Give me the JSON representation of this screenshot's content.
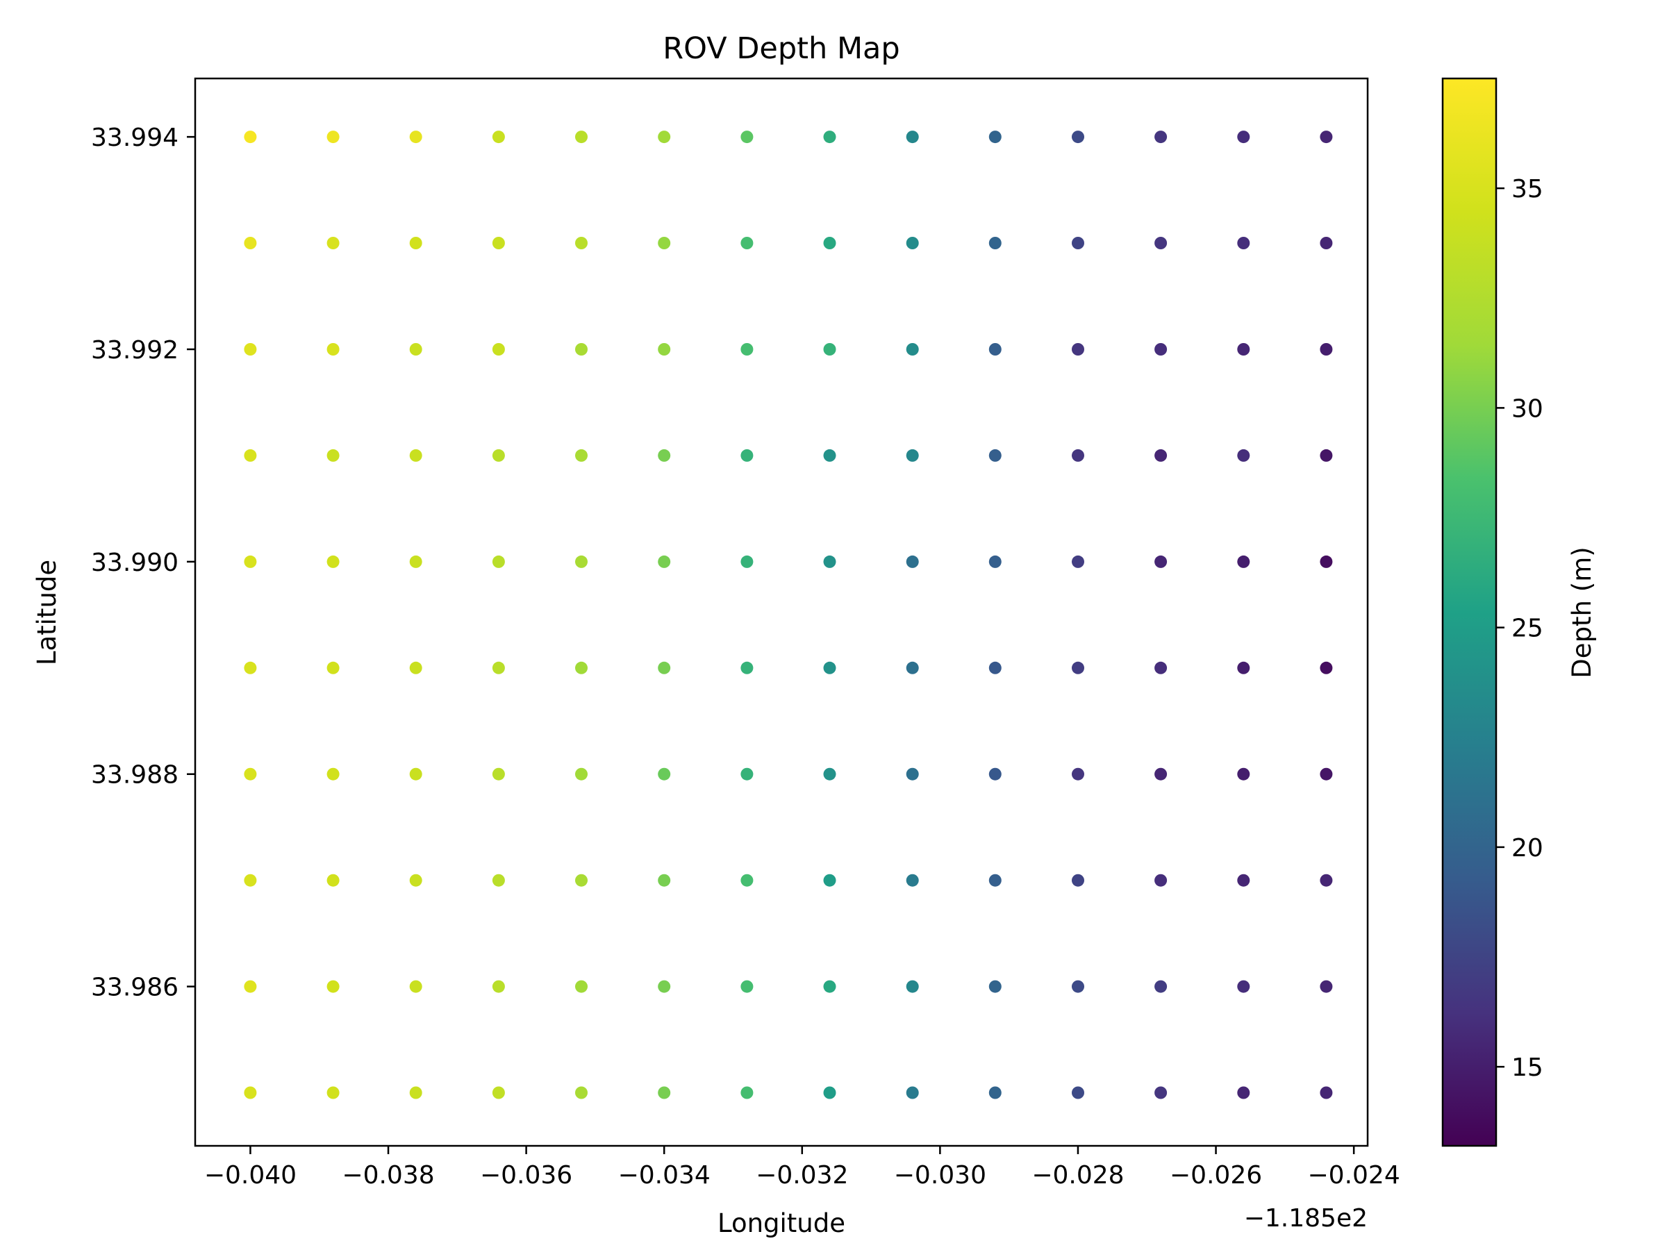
{
  "chart_data": {
    "type": "scatter",
    "title": "ROV Depth Map",
    "xlabel": "Longitude",
    "ylabel": "Latitude",
    "x_offset_label": "−1.185e2",
    "colorbar_label": "Depth (m)",
    "colormap": "viridis",
    "clim": [
      13.2,
      37.5
    ],
    "xlim": [
      -0.0408,
      -0.0238
    ],
    "ylim": [
      33.9845,
      33.99455
    ],
    "x_offset": -118.5,
    "xticks": [
      -0.04,
      -0.038,
      -0.036,
      -0.034,
      -0.032,
      -0.03,
      -0.028,
      -0.026,
      -0.024
    ],
    "xtick_labels": [
      "−0.040",
      "−0.038",
      "−0.036",
      "−0.034",
      "−0.032",
      "−0.030",
      "−0.028",
      "−0.026",
      "−0.024"
    ],
    "yticks": [
      33.986,
      33.988,
      33.99,
      33.992,
      33.994
    ],
    "ytick_labels": [
      "33.986",
      "33.988",
      "33.990",
      "33.992",
      "33.994"
    ],
    "cticks": [
      15,
      20,
      25,
      30,
      35
    ],
    "ctick_labels": [
      "15",
      "20",
      "25",
      "30",
      "35"
    ],
    "grid": false,
    "lons": [
      -0.04,
      -0.0388,
      -0.0376,
      -0.0364,
      -0.0352,
      -0.034,
      -0.0328,
      -0.0316,
      -0.0304,
      -0.0292,
      -0.028,
      -0.0268,
      -0.0256,
      -0.0244
    ],
    "lats": [
      33.994,
      33.993,
      33.992,
      33.991,
      33.99,
      33.989,
      33.988,
      33.987,
      33.986,
      33.985
    ],
    "depths": [
      [
        37,
        36.5,
        36,
        34,
        33,
        31.5,
        29,
        26.5,
        23,
        20,
        18,
        16.5,
        16,
        15.5
      ],
      [
        36,
        35,
        34.5,
        34,
        33,
        31,
        28,
        26,
        23.5,
        20,
        17.5,
        16.5,
        16,
        15.5
      ],
      [
        35.5,
        35,
        34,
        34,
        32,
        31,
        28,
        27,
        23.5,
        19.5,
        16.5,
        16,
        15.5,
        15
      ],
      [
        35,
        34,
        34,
        33,
        32,
        30,
        27,
        24,
        23,
        19.5,
        16.5,
        15.5,
        16,
        14.5
      ],
      [
        35,
        34.5,
        34,
        33,
        32,
        30,
        27,
        24,
        21,
        19.5,
        17,
        15.5,
        15,
        14
      ],
      [
        35,
        34.5,
        34,
        33,
        31.5,
        30,
        27,
        24,
        21,
        19,
        17,
        16,
        15,
        14
      ],
      [
        35,
        34.5,
        34,
        33,
        31.5,
        29.5,
        27,
        24,
        21,
        19,
        16.5,
        15.5,
        15,
        14.5
      ],
      [
        35,
        34.5,
        34,
        33,
        32,
        30,
        28,
        25,
        22,
        19.5,
        17.5,
        16,
        15.5,
        15.5
      ],
      [
        35.5,
        34.5,
        34,
        33,
        31.5,
        30,
        28,
        26,
        23,
        20,
        18,
        17,
        16,
        15.5
      ],
      [
        35,
        34.5,
        34,
        33.5,
        32,
        30,
        28,
        25,
        22,
        20,
        18,
        16.5,
        15.5,
        15.5
      ]
    ]
  }
}
